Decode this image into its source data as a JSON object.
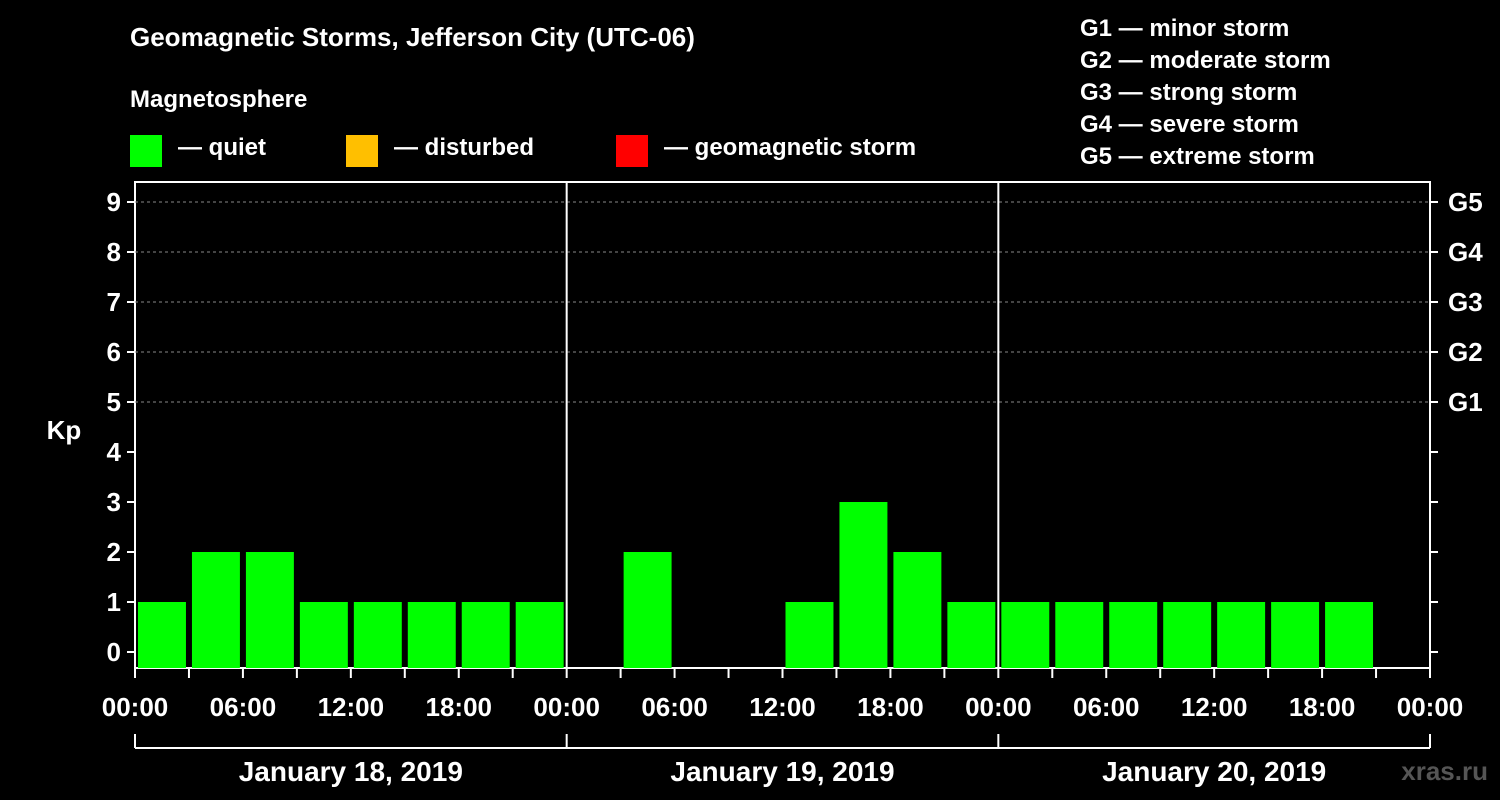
{
  "header": {
    "title": "Geomagnetic Storms, Jefferson City (UTC-06)",
    "subtitle": "Magnetosphere"
  },
  "legend": [
    {
      "label": "— quiet",
      "color": "#00ff00"
    },
    {
      "label": "— disturbed",
      "color": "#ffbf00"
    },
    {
      "label": "— geomagnetic storm",
      "color": "#ff0000"
    }
  ],
  "storm_scale": [
    "G1 — minor storm",
    "G2 — moderate storm",
    "G3 — strong storm",
    "G4 — severe storm",
    "G5 — extreme storm"
  ],
  "watermark": "xras.ru",
  "chart_data": {
    "type": "bar",
    "ylabel": "Kp",
    "ylim": [
      0,
      9
    ],
    "yticks": [
      0,
      1,
      2,
      3,
      4,
      5,
      6,
      7,
      8,
      9
    ],
    "right_axis_labels": [
      {
        "kp": 5,
        "label": "G1"
      },
      {
        "kp": 6,
        "label": "G2"
      },
      {
        "kp": 7,
        "label": "G3"
      },
      {
        "kp": 8,
        "label": "G4"
      },
      {
        "kp": 9,
        "label": "G5"
      }
    ],
    "dashed_gridlines_at": [
      5,
      6,
      7,
      8,
      9
    ],
    "bar_color": "#00ff00",
    "days": [
      {
        "date": "January 18, 2019",
        "kp": [
          1,
          2,
          2,
          1,
          1,
          1,
          1,
          1
        ]
      },
      {
        "date": "January 19, 2019",
        "kp": [
          0,
          2,
          0,
          0,
          1,
          3,
          2,
          1
        ]
      },
      {
        "date": "January 20, 2019",
        "kp": [
          1,
          1,
          1,
          1,
          1,
          1,
          1,
          null
        ]
      }
    ],
    "xtick_labels": [
      "00:00",
      "06:00",
      "12:00",
      "18:00",
      "00:00",
      "06:00",
      "12:00",
      "18:00",
      "00:00",
      "06:00",
      "12:00",
      "18:00",
      "00:00"
    ],
    "interval_hours": 3
  }
}
